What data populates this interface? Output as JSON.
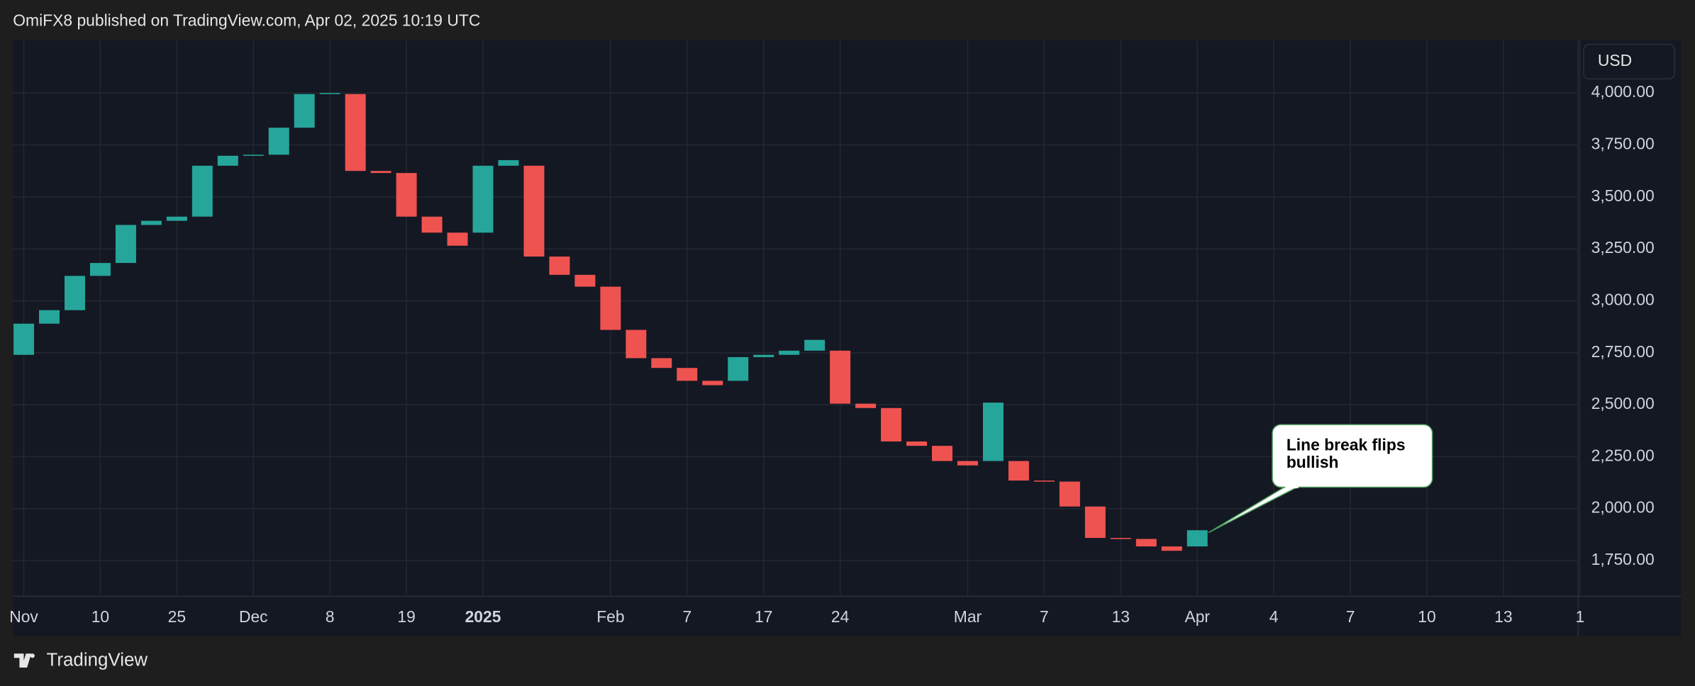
{
  "header": "OmiFX8 published on TradingView.com, Apr 02, 2025 10:19 UTC",
  "footer": "TradingView",
  "chart_data": {
    "type": "line_break",
    "currency": "USD",
    "annotation": "Line break flips bullish",
    "up_color": "#26a69a",
    "down_color": "#ef5350",
    "grid": true,
    "categories": [
      "Nov",
      null,
      null,
      "10",
      null,
      null,
      "25",
      null,
      null,
      "Dec",
      null,
      null,
      "8",
      null,
      null,
      "19",
      null,
      null,
      "2025",
      null,
      null,
      null,
      null,
      "Feb",
      null,
      null,
      "7",
      null,
      null,
      "17",
      null,
      null,
      "24",
      null,
      null,
      null,
      null,
      "Mar",
      null,
      null,
      "7",
      null,
      null,
      "13",
      null,
      null,
      "Apr",
      null,
      null,
      "4",
      null,
      null,
      "7",
      null,
      null,
      "10",
      null,
      null,
      "13",
      null,
      null,
      "1"
    ],
    "open": [
      2740,
      2890,
      2955,
      3120,
      3182,
      3365,
      3385,
      3405,
      3650,
      3698,
      3703,
      3833,
      3995,
      3995,
      3625,
      3615,
      3405,
      3328,
      3328,
      3650,
      3650,
      3213,
      3125,
      3068,
      2860,
      2724,
      2677,
      2615,
      2615,
      2729,
      2740,
      2760,
      2760,
      2505,
      2484,
      2323,
      2302,
      2229,
      2229,
      2229,
      2135,
      2130,
      2010,
      1859,
      1854,
      1818,
      1818,
      null,
      null,
      null,
      null,
      null,
      null,
      null,
      null,
      null,
      null,
      null,
      null,
      null,
      null,
      null
    ],
    "close": [
      2890,
      2955,
      3120,
      3182,
      3365,
      3385,
      3405,
      3650,
      3698,
      3703,
      3833,
      3995,
      4000,
      3625,
      3615,
      3405,
      3328,
      3265,
      3650,
      3677,
      3213,
      3125,
      3068,
      2860,
      2724,
      2677,
      2615,
      2594,
      2729,
      2740,
      2760,
      2812,
      2505,
      2484,
      2323,
      2302,
      2229,
      2208,
      2510,
      2135,
      2130,
      2010,
      1859,
      1854,
      1818,
      1797,
      1896,
      null,
      null,
      null,
      null,
      null,
      null,
      null,
      null,
      null,
      null,
      null,
      null,
      null,
      null,
      null
    ],
    "ylim": [
      1578,
      4255
    ],
    "yticks": [
      {
        "value": 1750,
        "label": "1,750.00"
      },
      {
        "value": 2000,
        "label": "2,000.00"
      },
      {
        "value": 2250,
        "label": "2,250.00"
      },
      {
        "value": 2500,
        "label": "2,500.00"
      },
      {
        "value": 2750,
        "label": "2,750.00"
      },
      {
        "value": 3000,
        "label": "3,000.00"
      },
      {
        "value": 3250,
        "label": "3,250.00"
      },
      {
        "value": 3500,
        "label": "3,500.00"
      },
      {
        "value": 3750,
        "label": "3,750.00"
      },
      {
        "value": 4000,
        "label": "4,000.00"
      }
    ]
  }
}
